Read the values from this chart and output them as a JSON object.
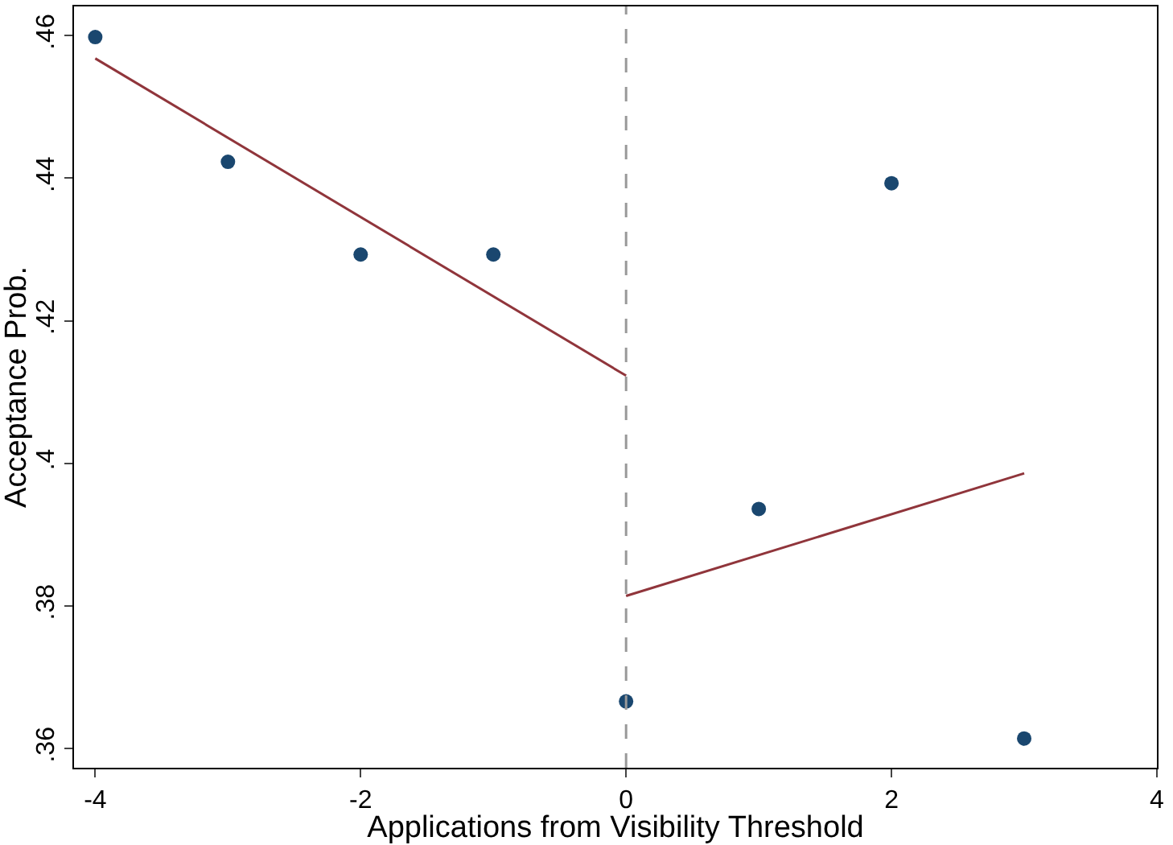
{
  "chart_data": {
    "type": "scatter",
    "xlabel": "Applications from Visibility Threshold",
    "ylabel": "Acceptance Prob.",
    "xlim": [
      -4.16,
      4
    ],
    "ylim": [
      0.3573,
      0.4641
    ],
    "xticks": [
      -4,
      -2,
      0,
      2,
      4
    ],
    "yticks": [
      {
        "value": 0.36,
        "label": ".36"
      },
      {
        "value": 0.38,
        "label": ".38"
      },
      {
        "value": 0.4,
        "label": ".4"
      },
      {
        "value": 0.42,
        "label": ".42"
      },
      {
        "value": 0.44,
        "label": ".44"
      },
      {
        "value": 0.46,
        "label": ".46"
      }
    ],
    "series": [
      {
        "marker": "circle",
        "color": "#1a476f",
        "x": [
          -4,
          -3,
          -2,
          -1,
          0,
          1,
          2,
          3
        ],
        "values": [
          0.4598,
          0.4423,
          0.4293,
          0.4293,
          0.3666,
          0.3936,
          0.4393,
          0.3614
        ]
      },
      {
        "type": "line",
        "color": "#90353b",
        "x": [
          -4,
          0
        ],
        "values": [
          0.4568,
          0.4123
        ]
      },
      {
        "type": "line",
        "color": "#90353b",
        "x": [
          0,
          3
        ],
        "values": [
          0.3814,
          0.3986
        ]
      }
    ],
    "ref_lines": [
      {
        "axis": "x",
        "value": 0,
        "color": "#999999",
        "line_style": "dashed"
      }
    ]
  }
}
